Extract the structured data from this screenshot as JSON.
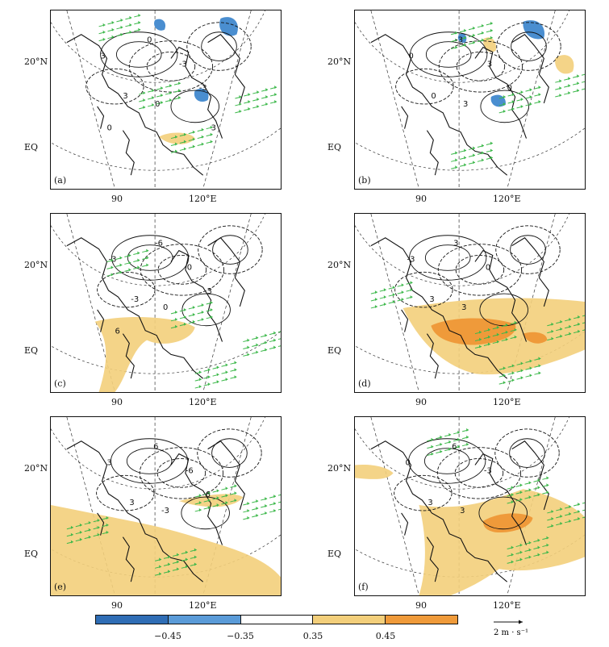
{
  "panels": [
    {
      "id": "a",
      "label": "(a)",
      "contour_labels": [
        "3",
        "0",
        "-3",
        "3",
        "0",
        "-3",
        "0",
        "3"
      ],
      "has_blue": true,
      "has_orange": false
    },
    {
      "id": "b",
      "label": "(b)",
      "contour_labels": [
        "0",
        "-3",
        "3",
        "0",
        "3",
        "0"
      ],
      "has_blue": true,
      "has_orange": false
    },
    {
      "id": "c",
      "label": "(c)",
      "contour_labels": [
        "-3",
        "-6",
        "0",
        "-3",
        "0",
        "3",
        "6"
      ],
      "has_blue": false,
      "has_orange": false
    },
    {
      "id": "d",
      "label": "(d)",
      "contour_labels": [
        "-3",
        "3",
        "0",
        "3",
        "3"
      ],
      "has_blue": false,
      "has_orange": true
    },
    {
      "id": "e",
      "label": "(e)",
      "contour_labels": [
        "3",
        "6",
        "-6",
        "3",
        "-3",
        "6"
      ],
      "has_blue": false,
      "has_orange": false
    },
    {
      "id": "f",
      "label": "(f)",
      "contour_labels": [
        "0",
        "6",
        "-3",
        "3",
        "3"
      ],
      "has_blue": false,
      "has_orange": true
    }
  ],
  "axes": {
    "lat20": "20°N",
    "eq": "EQ",
    "lon90": "90",
    "lon120": "120°E"
  },
  "colorbar": {
    "colors": [
      "#2f6db5",
      "#5a9bd8",
      "#ffffff",
      "#f3cf7b",
      "#ef9a3a"
    ],
    "labels": [
      "−0.45",
      "−0.35",
      "0.35",
      "0.45"
    ]
  },
  "reference_vector": {
    "label": "2 m · s⁻¹"
  },
  "colors": {
    "vector": "#3cb84a",
    "coast": "#111111",
    "yellow": "#f3cf7b",
    "orange": "#ef9a3a",
    "blue": "#4a8ed0"
  }
}
